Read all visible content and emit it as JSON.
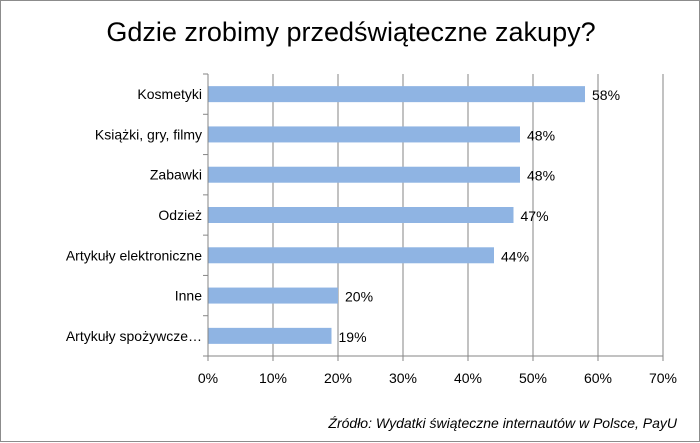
{
  "chart_data": {
    "type": "bar",
    "orientation": "horizontal",
    "title": "Gdzie zrobimy przedświąteczne zakupy?",
    "categories": [
      "Kosmetyki",
      "Książki, gry, filmy",
      "Zabawki",
      "Odzież",
      "Artykuły elektroniczne",
      "Inne",
      "Artykuły spożywcze…"
    ],
    "values": [
      58,
      48,
      48,
      47,
      44,
      20,
      19
    ],
    "value_labels": [
      "58%",
      "48%",
      "48%",
      "47%",
      "44%",
      "20%",
      "19%"
    ],
    "xlim": [
      0,
      70
    ],
    "xticks": [
      0,
      10,
      20,
      30,
      40,
      50,
      60,
      70
    ],
    "xtick_labels": [
      "0%",
      "10%",
      "20%",
      "30%",
      "40%",
      "50%",
      "60%",
      "70%"
    ],
    "xlabel": "",
    "ylabel": "",
    "grid": "vertical",
    "legend": "none",
    "bar_color": "#8fb4e3",
    "source_note": "Źródło: Wydatki świąteczne internautów  w Polsce, PayU"
  }
}
